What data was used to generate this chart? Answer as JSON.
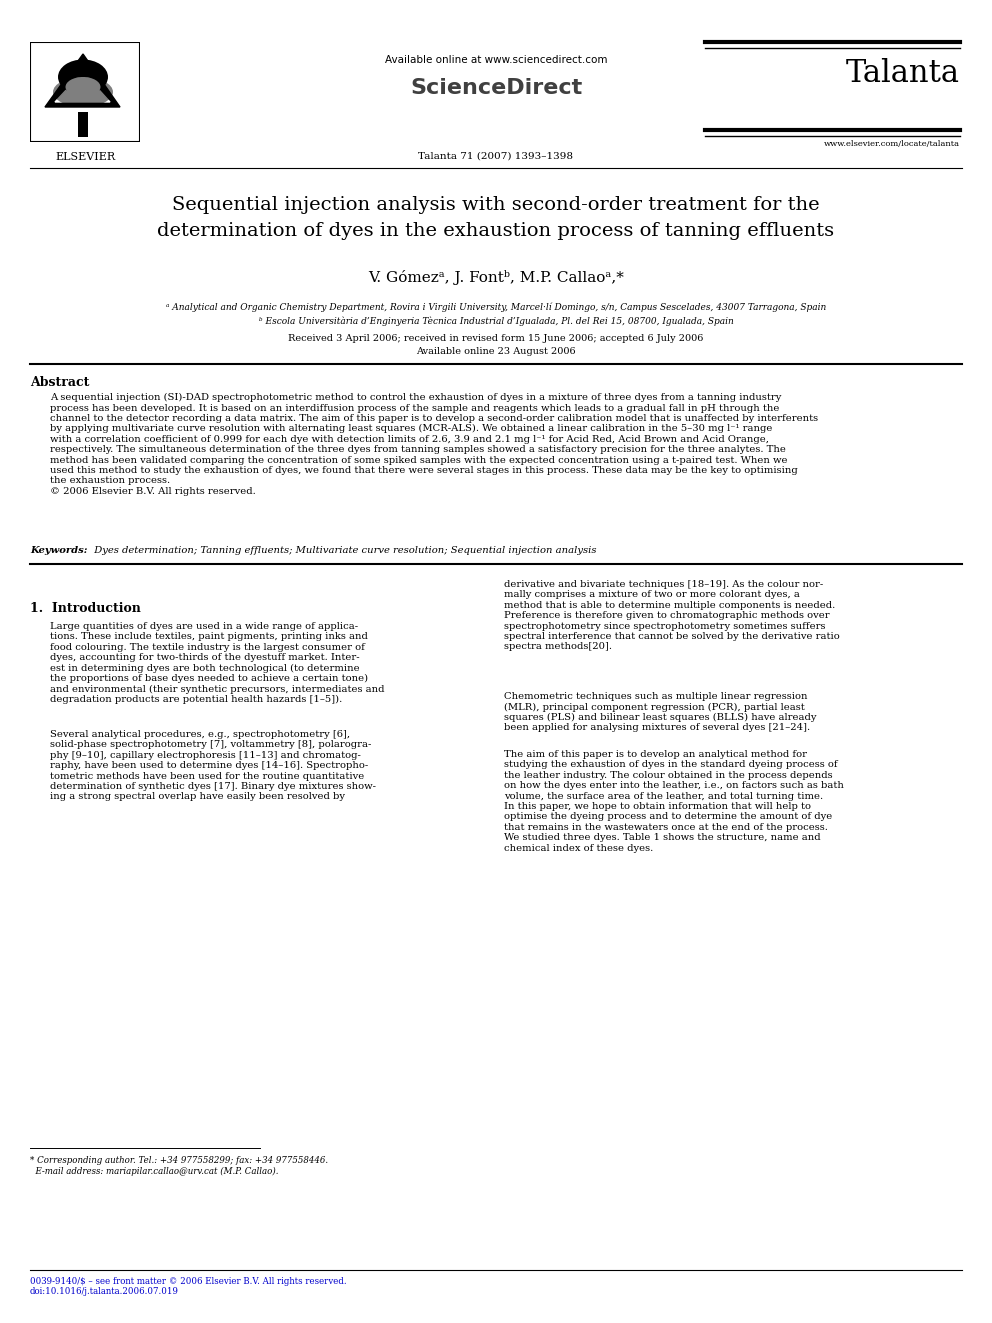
{
  "bg_color": "#ffffff",
  "page_width": 9.92,
  "page_height": 13.23,
  "top_bar_color": "#000000",
  "title_line1": "Sequential injection analysis with second-order treatment for the",
  "title_line2": "determination of dyes in the exhaustion process of tanning effluents",
  "authors": "V. Gómezᵃ, J. Fontᵇ, M.P. Callaoᵃ,*",
  "affil_a": "ᵃ Analytical and Organic Chemistry Department, Rovira i Virgili University, Marcel·lí Domingo, s/n, Campus Sescelades, 43007 Tarragona, Spain",
  "affil_b": "ᵇ Escola Universitària d’Enginyeria Tècnica Industrial d’Igualada, Pl. del Rei 15, 08700, Igualada, Spain",
  "received": "Received 3 April 2006; received in revised form 15 June 2006; accepted 6 July 2006",
  "available_online_date": "Available online 23 August 2006",
  "available_online_header": "Available online at www.sciencedirect.com",
  "sciencedirect": "ScienceDirect",
  "journal_name": "Talanta",
  "journal_info": "Talanta 71 (2007) 1393–1398",
  "journal_url": "www.elsevier.com/locate/talanta",
  "elsevier": "ELSEVIER",
  "abstract_title": "Abstract",
  "abstract_body": "A sequential injection (SI)-DAD spectrophotometric method to control the exhaustion of dyes in a mixture of three dyes from a tanning industry process has been developed. It is based on an interdiffusion process of the sample and reagents which leads to a gradual fall in pH through the channel to the detector recording a data matrix. The aim of this paper is to develop a second-order calibration model that is unaffected by interferents by applying multivariate curve resolution with alternating least squares (MCR-ALS). We obtained a linear calibration in the 5–30 mg l⁻¹ range with a correlation coefficient of 0.999 for each dye with detection limits of 2.6, 3.9 and 2.1 mg l⁻¹ for Acid Red, Acid Brown and Acid Orange, respectively. The simultaneous determination of the three dyes from tanning samples showed a satisfactory precision for the three analytes. The method has been validated comparing the concentration of some spiked samples with the expected concentration using a t-paired test. When we used this method to study the exhaustion of dyes, we found that there were several stages in this process. These data may be the key to optimising the exhaustion process.\n© 2006 Elsevier B.V. All rights reserved.",
  "keywords_label": "Keywords:",
  "keywords_body": "  Dyes determination; Tanning effluents; Multivariate curve resolution; Sequential injection analysis",
  "intro_heading": "1.  Introduction",
  "intro_col1_p1": "Large quantities of dyes are used in a wide range of applica-\ntions. These include textiles, paint pigments, printing inks and\nfood colouring. The textile industry is the largest consumer of\ndyes, accounting for two-thirds of the dyestuff market. Inter-\nest in determining dyes are both technological (to determine\nthe proportions of base dyes needed to achieve a certain tone)\nand environmental (their synthetic precursors, intermediates and\ndegradation products are potential health hazards [1–5]).",
  "intro_col1_p2": "Several analytical procedures, e.g., spectrophotometry [6],\nsolid-phase spectrophotometry [7], voltammetry [8], polarogra-\nphy [9–10], capillary electrophoresis [11–13] and chromatog-\nraphy, have been used to determine dyes [14–16]. Spectropho-\ntometric methods have been used for the routine quantitative\ndetermination of synthetic dyes [17]. Binary dye mixtures show-\ning a strong spectral overlap have easily been resolved by",
  "intro_col2_p1": "derivative and bivariate techniques [18–19]. As the colour nor-\nmally comprises a mixture of two or more colorant dyes, a\nmethod that is able to determine multiple components is needed.\nPreference is therefore given to chromatographic methods over\nspectrophotometry since spectrophotometry sometimes suffers\nspectral interference that cannot be solved by the derivative ratio\nspectra methods[20].",
  "intro_col2_p2": "Chemometric techniques such as multiple linear regression\n(MLR), principal component regression (PCR), partial least\nsquares (PLS) and bilinear least squares (BLLS) have already\nbeen applied for analysing mixtures of several dyes [21–24].",
  "intro_col2_p3": "The aim of this paper is to develop an analytical method for\nstudying the exhaustion of dyes in the standard dyeing process of\nthe leather industry. The colour obtained in the process depends\non how the dyes enter into the leather, i.e., on factors such as bath\nvolume, the surface area of the leather, and total turning time.\nIn this paper, we hope to obtain information that will help to\noptimise the dyeing process and to determine the amount of dye\nthat remains in the wastewaters once at the end of the process.\nWe studied three dyes. Table 1 shows the structure, name and\nchemical index of these dyes.",
  "footnote": "* Corresponding author. Tel.: +34 977558299; fax: +34 977558446.\n  E-mail address: mariapilar.callao@urv.cat (M.P. Callao).",
  "footer": "0039-9140/$ – see front matter © 2006 Elsevier B.V. All rights reserved.\ndoi:10.1016/j.talanta.2006.07.019",
  "link_color": "#0000cc"
}
